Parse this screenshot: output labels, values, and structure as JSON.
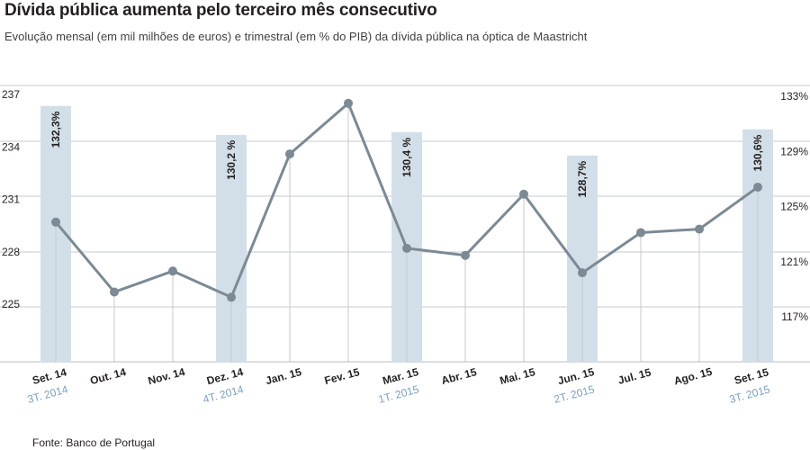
{
  "title": "Dívida pública aumenta pelo terceiro mês consecutivo",
  "subtitle": "Evolução mensal (em mil milhões de euros) e trimestral (em % do PIB) da dívida pública na óptica de Maastricht",
  "source": "Fonte: Banco de Portugal",
  "chart_data": {
    "type": "line",
    "categories": [
      "Set. 14",
      "Out. 14",
      "Nov. 14",
      "Dez. 14",
      "Jan. 15",
      "Fev. 15",
      "Mar. 15",
      "Abr. 15",
      "Mai. 15",
      "Jun. 15",
      "Jul. 15",
      "Ago. 15",
      "Set. 15"
    ],
    "series": [
      {
        "values": [
          229.8,
          225.8,
          227.0,
          225.5,
          233.7,
          236.6,
          228.3,
          227.9,
          231.4,
          226.9,
          229.2,
          229.4,
          231.8
        ]
      }
    ],
    "quarter_bars": [
      {
        "index": 0,
        "quarter": "3T. 2014",
        "value": 132.3,
        "label": "132,3%"
      },
      {
        "index": 3,
        "quarter": "4T. 2014",
        "value": 130.2,
        "label": "130,2 %"
      },
      {
        "index": 6,
        "quarter": "1T. 2015",
        "value": 130.4,
        "label": "130,4 %"
      },
      {
        "index": 9,
        "quarter": "2T. 2015",
        "value": 128.7,
        "label": "128,7%"
      },
      {
        "index": 12,
        "quarter": "3T. 2015",
        "value": 130.6,
        "label": "130,6%"
      }
    ],
    "y_left": {
      "ticks": [
        225,
        228,
        231,
        234,
        237
      ],
      "labels": [
        "225",
        "228",
        "231",
        "234",
        "237"
      ],
      "range": [
        222,
        238
      ]
    },
    "y_right": {
      "ticks": [
        117,
        121,
        125,
        129,
        133
      ],
      "labels": [
        "117%",
        "121%",
        "125%",
        "129%",
        "133%"
      ],
      "range": [
        113,
        134
      ]
    },
    "grid": true,
    "colors": {
      "line": "#7b8a94",
      "bar": "#d3dfe8",
      "grid": "#c4c9cd",
      "quarter_label": "#7aa0bf"
    }
  }
}
